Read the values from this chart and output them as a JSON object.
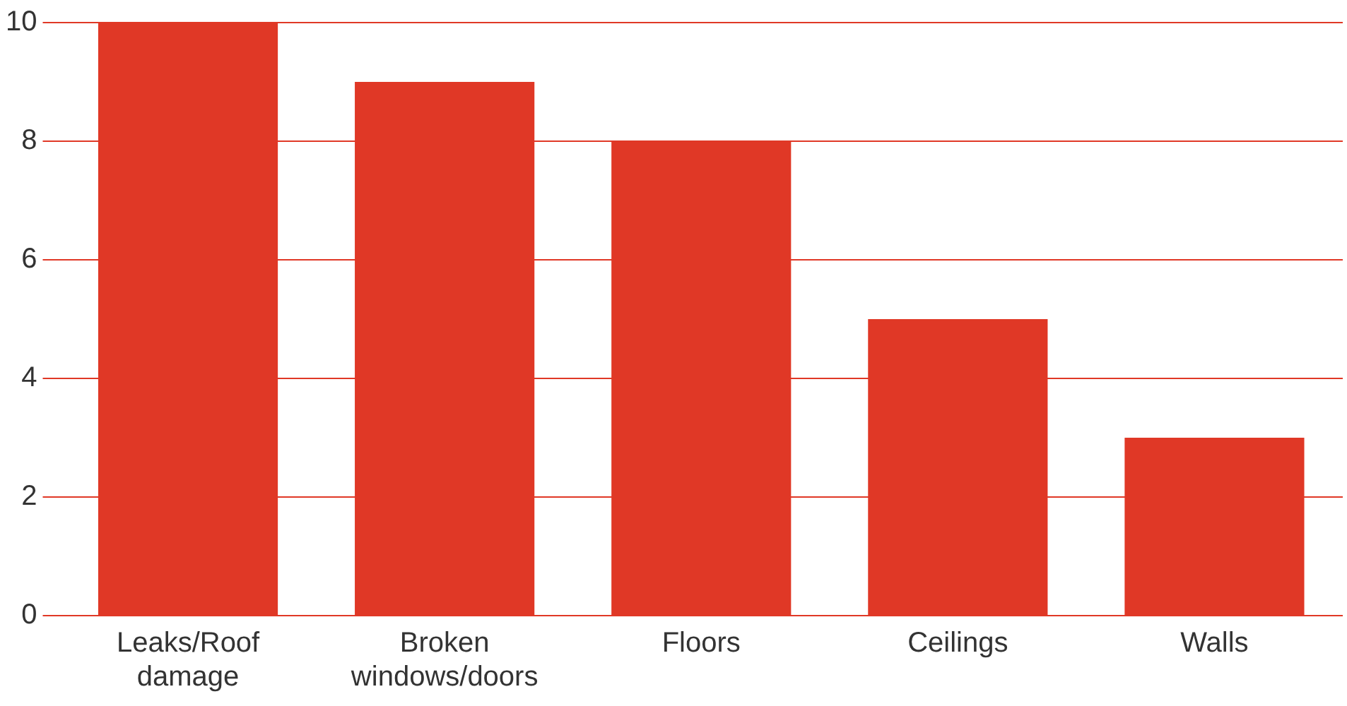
{
  "chart_data": {
    "type": "bar",
    "categories": [
      "Leaks/Roof damage",
      "Broken windows/doors",
      "Floors",
      "Ceilings",
      "Walls"
    ],
    "values": [
      10,
      9,
      8,
      5,
      3
    ],
    "color": "#e03826",
    "ylim": [
      0,
      10
    ],
    "yticks": [
      0,
      2,
      4,
      6,
      8,
      10
    ],
    "grid": "y",
    "legend": false
  }
}
